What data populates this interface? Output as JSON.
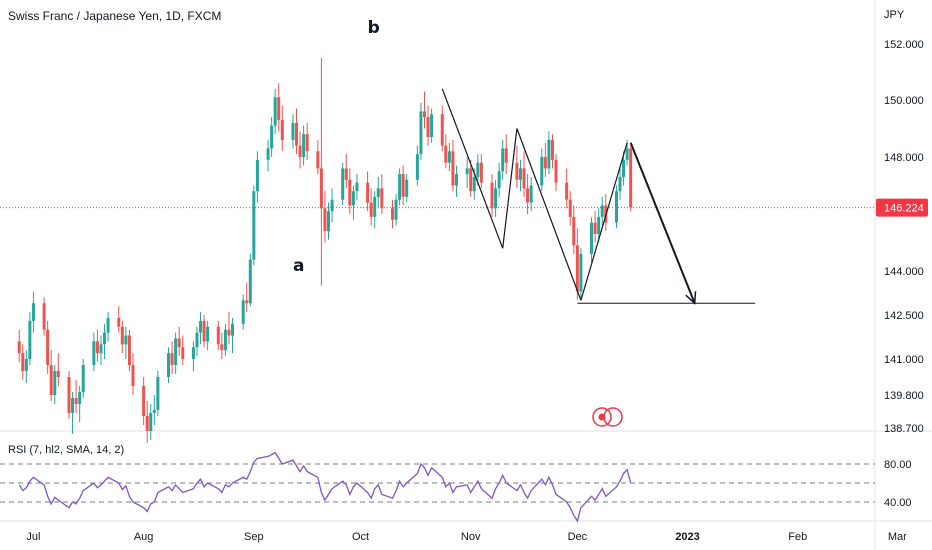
{
  "header": {
    "symbol_title": "Swiss Franc / Japanese Yen, 1D, FXCM"
  },
  "price_axis": {
    "currency": "JPY",
    "ticks": [
      "152.000",
      "150.000",
      "148.000",
      "144.000",
      "142.500",
      "141.000",
      "139.800",
      "138.700"
    ],
    "last_price": "146.224"
  },
  "rsi_panel": {
    "label": "RSI (7, hl2, SMA, 14, 2)",
    "ticks": [
      "80.00",
      "40.00"
    ]
  },
  "time_axis": {
    "ticks": [
      "Jul",
      "Aug",
      "Sep",
      "Oct",
      "Nov",
      "Dec",
      "2023",
      "Feb",
      "Mar"
    ]
  },
  "annotations": {
    "label_a": "a",
    "label_b": "b"
  },
  "colors": {
    "up": "#26a69a",
    "down": "#ef5350",
    "rsi_line": "#7e57c2",
    "last_price_line": "#f23645",
    "drawing": "#131722"
  },
  "chart_data": {
    "type": "candlestick",
    "title": "Swiss Franc / Japanese Yen, 1D, FXCM",
    "x": [
      "2022-06-27",
      "2022-06-28",
      "2022-06-29",
      "2022-06-30",
      "2022-07-01",
      "2022-07-04",
      "2022-07-05",
      "2022-07-06",
      "2022-07-07",
      "2022-07-08",
      "2022-07-11",
      "2022-07-12",
      "2022-07-13",
      "2022-07-14",
      "2022-07-15",
      "2022-07-18",
      "2022-07-19",
      "2022-07-20",
      "2022-07-21",
      "2022-07-22",
      "2022-07-25",
      "2022-07-26",
      "2022-07-27",
      "2022-07-28",
      "2022-07-29",
      "2022-08-01",
      "2022-08-02",
      "2022-08-03",
      "2022-08-04",
      "2022-08-05",
      "2022-08-08",
      "2022-08-09",
      "2022-08-10",
      "2022-08-11",
      "2022-08-12",
      "2022-08-15",
      "2022-08-16",
      "2022-08-17",
      "2022-08-18",
      "2022-08-19",
      "2022-08-22",
      "2022-08-23",
      "2022-08-24",
      "2022-08-25",
      "2022-08-26",
      "2022-08-29",
      "2022-08-30",
      "2022-08-31",
      "2022-09-01",
      "2022-09-02",
      "2022-09-05",
      "2022-09-06",
      "2022-09-07",
      "2022-09-08",
      "2022-09-09",
      "2022-09-12",
      "2022-09-13",
      "2022-09-14",
      "2022-09-15",
      "2022-09-16",
      "2022-09-19",
      "2022-09-20",
      "2022-09-21",
      "2022-09-22",
      "2022-09-23",
      "2022-09-26",
      "2022-09-27",
      "2022-09-28",
      "2022-09-29",
      "2022-09-30",
      "2022-10-03",
      "2022-10-04",
      "2022-10-05",
      "2022-10-06",
      "2022-10-07",
      "2022-10-10",
      "2022-10-11",
      "2022-10-12",
      "2022-10-13",
      "2022-10-14",
      "2022-10-17",
      "2022-10-18",
      "2022-10-19",
      "2022-10-20",
      "2022-10-21",
      "2022-10-24",
      "2022-10-25",
      "2022-10-26",
      "2022-10-27",
      "2022-10-28",
      "2022-10-31",
      "2022-11-01",
      "2022-11-02",
      "2022-11-03",
      "2022-11-04",
      "2022-11-07",
      "2022-11-08",
      "2022-11-09",
      "2022-11-10",
      "2022-11-11",
      "2022-11-14",
      "2022-11-15",
      "2022-11-16",
      "2022-11-17",
      "2022-11-18",
      "2022-11-21",
      "2022-11-22",
      "2022-11-23",
      "2022-11-24",
      "2022-11-25",
      "2022-11-28",
      "2022-11-29",
      "2022-11-30",
      "2022-12-01",
      "2022-12-02",
      "2022-12-05",
      "2022-12-06",
      "2022-12-07",
      "2022-12-08",
      "2022-12-09",
      "2022-12-12",
      "2022-12-13",
      "2022-12-14",
      "2022-12-15",
      "2022-12-16"
    ],
    "ohlc": [
      [
        141.6,
        142.0,
        140.9,
        141.2
      ],
      [
        141.2,
        141.5,
        140.3,
        140.6
      ],
      [
        140.6,
        141.3,
        140.2,
        141.0
      ],
      [
        141.0,
        142.6,
        140.8,
        142.3
      ],
      [
        142.3,
        143.3,
        141.9,
        142.9
      ],
      [
        142.9,
        143.1,
        141.8,
        142.0
      ],
      [
        142.0,
        142.3,
        140.5,
        140.8
      ],
      [
        140.8,
        141.3,
        139.6,
        139.8
      ],
      [
        139.8,
        140.8,
        139.5,
        140.6
      ],
      [
        140.6,
        141.2,
        140.1,
        140.4
      ],
      [
        140.4,
        140.6,
        139.0,
        139.2
      ],
      [
        139.2,
        139.9,
        138.5,
        139.7
      ],
      [
        139.7,
        140.3,
        139.2,
        139.5
      ],
      [
        139.5,
        140.1,
        138.9,
        139.9
      ],
      [
        139.9,
        141.0,
        139.7,
        140.8
      ],
      [
        140.8,
        141.9,
        140.6,
        141.6
      ],
      [
        141.6,
        142.0,
        140.9,
        141.2
      ],
      [
        141.2,
        141.8,
        140.8,
        141.5
      ],
      [
        141.5,
        142.2,
        141.0,
        141.9
      ],
      [
        141.9,
        142.6,
        141.6,
        142.4
      ],
      [
        142.4,
        142.8,
        141.9,
        142.1
      ],
      [
        142.1,
        142.3,
        141.2,
        141.5
      ],
      [
        141.5,
        142.1,
        141.0,
        141.8
      ],
      [
        141.8,
        142.0,
        140.6,
        140.8
      ],
      [
        140.8,
        141.2,
        139.8,
        140.1
      ],
      [
        140.1,
        140.4,
        138.8,
        139.1
      ],
      [
        139.1,
        139.6,
        138.2,
        138.6
      ],
      [
        138.6,
        139.5,
        138.3,
        139.2
      ],
      [
        139.2,
        139.8,
        138.8,
        139.3
      ],
      [
        139.3,
        140.6,
        139.1,
        140.4
      ],
      [
        140.4,
        141.4,
        140.2,
        141.2
      ],
      [
        141.2,
        141.6,
        140.5,
        140.8
      ],
      [
        140.8,
        141.9,
        140.5,
        141.7
      ],
      [
        141.7,
        142.1,
        141.1,
        141.4
      ],
      [
        141.4,
        141.8,
        140.8,
        141.0
      ],
      [
        141.0,
        141.6,
        140.6,
        141.4
      ],
      [
        141.4,
        142.1,
        141.1,
        141.9
      ],
      [
        141.9,
        142.6,
        141.5,
        142.3
      ],
      [
        142.3,
        142.5,
        141.4,
        141.6
      ],
      [
        141.6,
        142.3,
        141.3,
        142.1
      ],
      [
        142.1,
        142.3,
        141.3,
        141.5
      ],
      [
        141.5,
        141.9,
        141.0,
        141.3
      ],
      [
        141.3,
        142.2,
        141.1,
        142.0
      ],
      [
        142.0,
        142.6,
        141.5,
        141.8
      ],
      [
        141.8,
        142.4,
        141.2,
        142.2
      ],
      [
        142.2,
        143.2,
        142.0,
        143.0
      ],
      [
        143.0,
        143.6,
        142.6,
        142.9
      ],
      [
        142.9,
        144.6,
        142.8,
        144.4
      ],
      [
        144.4,
        147.0,
        144.2,
        146.8
      ],
      [
        146.8,
        148.2,
        146.4,
        147.9
      ],
      [
        147.9,
        148.6,
        147.5,
        148.3
      ],
      [
        148.3,
        149.4,
        148.0,
        149.1
      ],
      [
        149.1,
        150.4,
        148.8,
        150.1
      ],
      [
        150.1,
        150.6,
        148.9,
        149.3
      ],
      [
        149.3,
        149.8,
        148.2,
        148.6
      ],
      [
        148.6,
        149.5,
        148.3,
        149.2
      ],
      [
        149.2,
        149.7,
        148.1,
        148.4
      ],
      [
        148.4,
        148.9,
        147.6,
        148.0
      ],
      [
        148.0,
        149.1,
        147.7,
        148.8
      ],
      [
        148.8,
        149.2,
        147.9,
        148.2
      ],
      [
        148.2,
        148.6,
        147.4,
        147.6
      ],
      [
        147.6,
        151.5,
        143.5,
        146.2
      ],
      [
        146.2,
        146.8,
        145.0,
        145.4
      ],
      [
        145.4,
        146.4,
        145.1,
        146.1
      ],
      [
        146.1,
        146.9,
        145.7,
        146.5
      ],
      [
        146.5,
        147.8,
        146.3,
        147.6
      ],
      [
        147.6,
        148.1,
        146.9,
        147.2
      ],
      [
        147.2,
        147.6,
        146.0,
        146.3
      ],
      [
        146.3,
        147.0,
        145.8,
        146.8
      ],
      [
        146.8,
        147.4,
        146.5,
        147.1
      ],
      [
        147.1,
        147.5,
        146.1,
        146.4
      ],
      [
        146.4,
        146.9,
        145.6,
        145.9
      ],
      [
        145.9,
        146.8,
        145.5,
        146.6
      ],
      [
        146.6,
        147.3,
        146.2,
        146.9
      ],
      [
        146.9,
        147.4,
        146.0,
        146.2
      ],
      [
        146.2,
        146.5,
        145.5,
        145.8
      ],
      [
        145.8,
        146.7,
        145.6,
        146.5
      ],
      [
        146.5,
        147.6,
        146.3,
        147.4
      ],
      [
        147.4,
        147.7,
        146.3,
        146.6
      ],
      [
        146.6,
        147.4,
        146.4,
        147.2
      ],
      [
        147.2,
        148.4,
        147.0,
        148.1
      ],
      [
        148.1,
        149.9,
        147.9,
        149.6
      ],
      [
        149.6,
        150.3,
        149.0,
        149.4
      ],
      [
        149.4,
        149.8,
        148.4,
        148.7
      ],
      [
        148.7,
        149.7,
        148.5,
        149.5
      ],
      [
        149.5,
        149.8,
        148.2,
        148.4
      ],
      [
        148.4,
        148.8,
        147.6,
        147.8
      ],
      [
        147.8,
        148.5,
        147.5,
        148.2
      ],
      [
        148.2,
        148.6,
        146.8,
        147.0
      ],
      [
        147.0,
        147.7,
        146.6,
        147.4
      ],
      [
        147.4,
        148.0,
        146.9,
        147.6
      ],
      [
        147.6,
        147.9,
        146.6,
        146.8
      ],
      [
        146.8,
        147.6,
        146.5,
        147.3
      ],
      [
        147.3,
        148.1,
        147.0,
        147.8
      ],
      [
        147.8,
        148.1,
        146.9,
        147.1
      ],
      [
        147.1,
        147.4,
        145.9,
        146.2
      ],
      [
        146.2,
        147.2,
        145.9,
        146.9
      ],
      [
        146.9,
        147.8,
        146.6,
        147.5
      ],
      [
        147.5,
        148.6,
        147.2,
        148.3
      ],
      [
        148.3,
        148.8,
        147.4,
        147.8
      ],
      [
        147.8,
        148.4,
        146.9,
        147.2
      ],
      [
        147.2,
        147.9,
        146.8,
        147.6
      ],
      [
        147.6,
        148.2,
        146.6,
        146.9
      ],
      [
        146.9,
        147.4,
        146.0,
        146.4
      ],
      [
        146.4,
        147.3,
        146.1,
        147.0
      ],
      [
        147.0,
        148.3,
        146.8,
        148.0
      ],
      [
        148.0,
        148.5,
        147.3,
        147.6
      ],
      [
        147.6,
        148.9,
        147.4,
        148.6
      ],
      [
        148.6,
        148.8,
        147.6,
        147.9
      ],
      [
        147.9,
        148.1,
        146.8,
        147.1
      ],
      [
        147.1,
        147.6,
        146.2,
        146.5
      ],
      [
        146.5,
        146.8,
        145.6,
        145.9
      ],
      [
        145.9,
        146.3,
        144.6,
        144.9
      ],
      [
        144.9,
        145.5,
        143.0,
        143.3
      ],
      [
        143.3,
        144.8,
        143.1,
        144.6
      ],
      [
        144.6,
        145.9,
        144.3,
        145.7
      ],
      [
        145.7,
        146.1,
        145.0,
        145.3
      ],
      [
        145.3,
        146.2,
        145.0,
        145.9
      ],
      [
        145.9,
        146.6,
        145.6,
        146.3
      ],
      [
        146.3,
        146.7,
        145.4,
        145.7
      ],
      [
        145.7,
        147.0,
        145.5,
        146.8
      ],
      [
        146.8,
        147.6,
        146.5,
        147.3
      ],
      [
        147.3,
        148.2,
        147.0,
        147.9
      ],
      [
        147.9,
        148.6,
        147.7,
        148.3
      ],
      [
        148.3,
        148.4,
        146.1,
        146.224
      ]
    ],
    "rsi": [
      58,
      52,
      55,
      62,
      66,
      58,
      46,
      38,
      45,
      42,
      34,
      40,
      38,
      44,
      52,
      60,
      55,
      58,
      62,
      66,
      60,
      53,
      57,
      46,
      40,
      34,
      30,
      38,
      40,
      50,
      56,
      52,
      58,
      54,
      50,
      54,
      60,
      64,
      56,
      60,
      54,
      50,
      58,
      56,
      60,
      66,
      64,
      72,
      82,
      86,
      88,
      90,
      92,
      86,
      80,
      84,
      78,
      72,
      78,
      72,
      66,
      50,
      42,
      48,
      54,
      62,
      58,
      48,
      56,
      60,
      50,
      44,
      54,
      58,
      48,
      44,
      52,
      62,
      56,
      60,
      70,
      80,
      76,
      68,
      76,
      66,
      56,
      60,
      50,
      56,
      58,
      50,
      56,
      62,
      54,
      44,
      54,
      60,
      68,
      60,
      52,
      58,
      50,
      44,
      52,
      64,
      58,
      66,
      58,
      48,
      40,
      34,
      26,
      20,
      34,
      46,
      42,
      48,
      54,
      46,
      56,
      62,
      70,
      74,
      60
    ],
    "ylim": [
      138.7,
      152.0
    ],
    "rsi_ylim": [
      20,
      95
    ],
    "rsi_bands": [
      80,
      60,
      40
    ],
    "currency": "JPY",
    "last_price": 146.224,
    "xlabel": "",
    "ylabel": "",
    "grid": false,
    "drawings": {
      "zigzag_lines": [
        [
          [
            "2022-10-24",
            150.4
          ],
          [
            "2022-11-10",
            144.8
          ]
        ],
        [
          [
            "2022-11-10",
            144.8
          ],
          [
            "2022-11-14",
            149.0
          ]
        ],
        [
          [
            "2022-11-14",
            149.0
          ],
          [
            "2022-12-02",
            143.0
          ]
        ],
        [
          [
            "2022-12-02",
            143.0
          ],
          [
            "2022-12-15",
            148.5
          ]
        ]
      ],
      "projection_arrow": [
        [
          "2022-12-16",
          148.5
        ],
        [
          "2023-01-03",
          142.9
        ]
      ],
      "support_line": [
        [
          "2022-12-01",
          142.9
        ],
        [
          "2023-01-20",
          142.9
        ]
      ],
      "labels": [
        {
          "text": "a",
          "x": "2022-09-12",
          "y": 144.0
        },
        {
          "text": "b",
          "x": "2022-10-03",
          "y": 152.4
        }
      ]
    }
  }
}
